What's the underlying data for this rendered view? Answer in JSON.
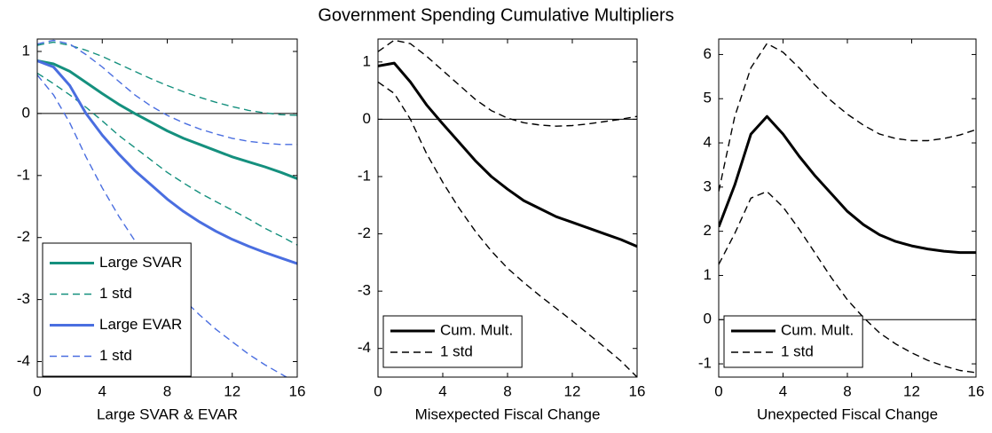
{
  "title": "Government Spending Cumulative Multipliers",
  "chart_data": [
    {
      "type": "line",
      "xlabel": "Large SVAR & EVAR",
      "x": [
        0,
        1,
        2,
        3,
        4,
        5,
        6,
        7,
        8,
        9,
        10,
        11,
        12,
        13,
        14,
        15,
        16
      ],
      "xlim": [
        0,
        16
      ],
      "xticks": [
        0,
        4,
        8,
        12,
        16
      ],
      "ylim": [
        -4.25,
        1.2
      ],
      "yticks": [
        -4,
        -3,
        -2,
        -1,
        0,
        1
      ],
      "hline": 0,
      "legend": "lower left",
      "series": [
        {
          "name": "Large SVAR",
          "color": "#15907e",
          "style": "solid",
          "values": [
            0.85,
            0.8,
            0.68,
            0.5,
            0.32,
            0.15,
            0,
            -0.14,
            -0.28,
            -0.4,
            -0.5,
            -0.6,
            -0.7,
            -0.78,
            -0.86,
            -0.95,
            -1.05
          ]
        },
        {
          "name": "1 std",
          "color": "#15907e",
          "style": "dashed",
          "upper": [
            1.1,
            1.15,
            1.1,
            1.02,
            0.92,
            0.8,
            0.68,
            0.56,
            0.45,
            0.35,
            0.26,
            0.18,
            0.11,
            0.05,
            0.01,
            -0.02,
            -0.03
          ],
          "lower": [
            0.65,
            0.48,
            0.3,
            0.1,
            -0.12,
            -0.35,
            -0.55,
            -0.75,
            -0.95,
            -1.12,
            -1.28,
            -1.42,
            -1.56,
            -1.7,
            -1.85,
            -1.98,
            -2.12
          ]
        },
        {
          "name": "Large EVAR",
          "color": "#4a6ee0",
          "style": "solid",
          "values": [
            0.85,
            0.75,
            0.45,
            0,
            -0.35,
            -0.65,
            -0.92,
            -1.15,
            -1.38,
            -1.58,
            -1.75,
            -1.9,
            -2.03,
            -2.14,
            -2.24,
            -2.33,
            -2.42
          ]
        },
        {
          "name": "1 std",
          "color": "#4a6ee0",
          "style": "dashed",
          "upper": [
            1.12,
            1.18,
            1.12,
            0.95,
            0.75,
            0.52,
            0.3,
            0.12,
            -0.03,
            -0.15,
            -0.25,
            -0.33,
            -0.4,
            -0.45,
            -0.48,
            -0.5,
            -0.5
          ],
          "lower": [
            0.62,
            0.3,
            -0.15,
            -0.7,
            -1.2,
            -1.65,
            -2.05,
            -2.4,
            -2.7,
            -3,
            -3.25,
            -3.48,
            -3.68,
            -3.88,
            -4.05,
            -4.2,
            -4.35
          ]
        }
      ]
    },
    {
      "type": "line",
      "xlabel": "Misexpected Fiscal Change",
      "x": [
        0,
        1,
        2,
        3,
        4,
        5,
        6,
        7,
        8,
        9,
        10,
        11,
        12,
        13,
        14,
        15,
        16
      ],
      "xlim": [
        0,
        16
      ],
      "xticks": [
        0,
        4,
        8,
        12,
        16
      ],
      "ylim": [
        -4.5,
        1.4
      ],
      "yticks": [
        -4,
        -3,
        -2,
        -1,
        0,
        1
      ],
      "hline": 0,
      "legend": "lower left",
      "series": [
        {
          "name": "Cum. Mult.",
          "color": "#000000",
          "style": "solid",
          "values": [
            0.93,
            0.98,
            0.65,
            0.25,
            -0.08,
            -0.4,
            -0.72,
            -1,
            -1.22,
            -1.42,
            -1.56,
            -1.7,
            -1.8,
            -1.9,
            -2,
            -2.1,
            -2.22
          ]
        },
        {
          "name": "1 std",
          "color": "#000000",
          "style": "dashed",
          "upper": [
            1.18,
            1.38,
            1.32,
            1.1,
            0.85,
            0.6,
            0.35,
            0.15,
            0.02,
            -0.06,
            -0.1,
            -0.12,
            -0.11,
            -0.08,
            -0.04,
            0,
            0.05
          ],
          "lower": [
            0.65,
            0.45,
            0,
            -0.6,
            -1.1,
            -1.55,
            -1.95,
            -2.3,
            -2.6,
            -2.85,
            -3.08,
            -3.3,
            -3.52,
            -3.75,
            -3.98,
            -4.22,
            -4.5
          ]
        }
      ]
    },
    {
      "type": "line",
      "xlabel": "Unexpected Fiscal Change",
      "x": [
        0,
        1,
        2,
        3,
        4,
        5,
        6,
        7,
        8,
        9,
        10,
        11,
        12,
        13,
        14,
        15,
        16
      ],
      "xlim": [
        0,
        16
      ],
      "xticks": [
        0,
        4,
        8,
        12,
        16
      ],
      "ylim": [
        -1.3,
        6.35
      ],
      "yticks": [
        -1,
        0,
        1,
        2,
        3,
        4,
        5,
        6
      ],
      "hline": 0,
      "legend": "lower left",
      "series": [
        {
          "name": "Cum. Mult.",
          "color": "#000000",
          "style": "solid",
          "values": [
            2.1,
            3.05,
            4.2,
            4.6,
            4.2,
            3.7,
            3.25,
            2.85,
            2.45,
            2.15,
            1.92,
            1.77,
            1.67,
            1.6,
            1.55,
            1.52,
            1.52
          ]
        },
        {
          "name": "1 std",
          "color": "#000000",
          "style": "dashed",
          "upper": [
            2.9,
            4.6,
            5.7,
            6.25,
            6.05,
            5.7,
            5.3,
            4.95,
            4.65,
            4.4,
            4.2,
            4.1,
            4.05,
            4.05,
            4.1,
            4.18,
            4.3
          ],
          "lower": [
            1.25,
            1.95,
            2.75,
            2.9,
            2.55,
            2.05,
            1.5,
            0.95,
            0.45,
            0.05,
            -0.3,
            -0.55,
            -0.75,
            -0.92,
            -1.05,
            -1.15,
            -1.2
          ]
        }
      ]
    }
  ]
}
